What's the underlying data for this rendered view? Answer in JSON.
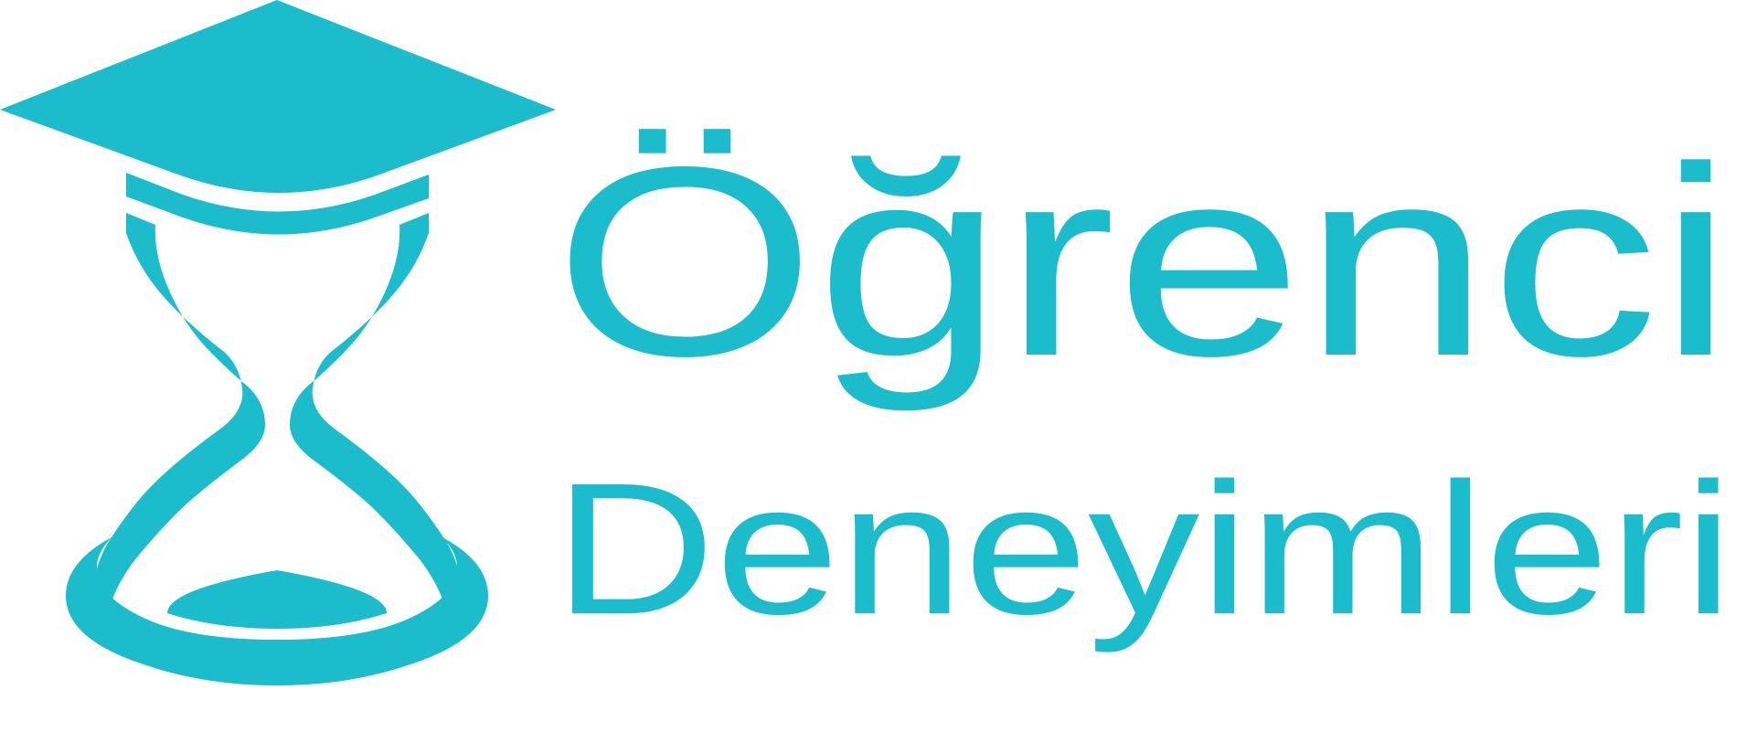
{
  "brand": {
    "name_line1": "Öğrenci",
    "name_line2": "Deneyimleri",
    "color": "#1BBDCD",
    "icon": "graduation-cap-hourglass-icon"
  }
}
